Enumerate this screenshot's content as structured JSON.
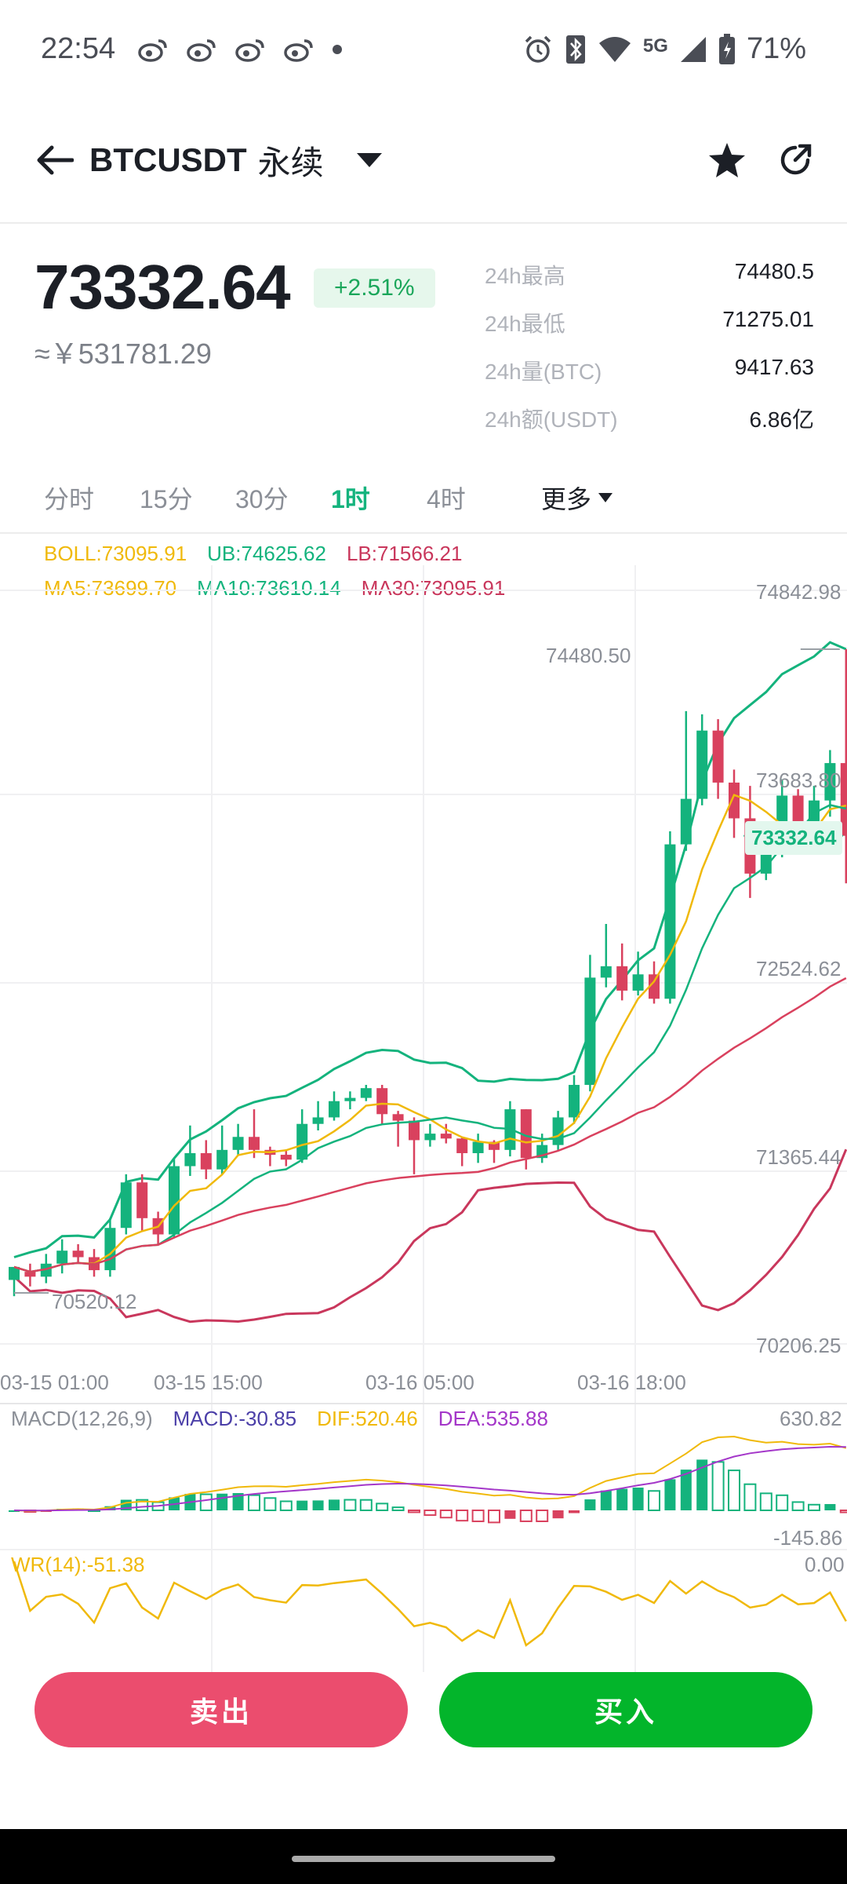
{
  "status_bar": {
    "time": "22:54",
    "network": "5G",
    "battery": "71%",
    "icons": [
      "weibo-icon",
      "weibo-icon",
      "weibo-icon",
      "weibo-icon",
      "dot-icon",
      "alarm-icon",
      "bluetooth-icon",
      "wifi-icon",
      "signal-icon",
      "battery-icon"
    ]
  },
  "header": {
    "symbol": "BTCUSDT",
    "contract_type": "永续"
  },
  "ticker": {
    "last_price": "73332.64",
    "change_pct": "+2.51%",
    "cny_price": "≈￥531781.29",
    "stats": [
      {
        "label": "24h最高",
        "value": "74480.5"
      },
      {
        "label": "24h最低",
        "value": "71275.01"
      },
      {
        "label": "24h量(BTC)",
        "value": "9417.63"
      },
      {
        "label": "24h额(USDT)",
        "value": "6.86亿"
      }
    ]
  },
  "period_tabs": {
    "items": [
      "分时",
      "15分",
      "30分",
      "1时",
      "4时"
    ],
    "active": "1时",
    "more_label": "更多"
  },
  "indicators": {
    "boll": "BOLL:73095.91",
    "ub": "UB:74625.62",
    "lb": "LB:71566.21",
    "ma5": "MA5:73699.70",
    "ma10": "MA10:73610.14",
    "ma30": "MA30:73095.91",
    "macd_title": "MACD(12,26,9)",
    "macd": "MACD:-30.85",
    "dif": "DIF:520.46",
    "dea": "DEA:535.88",
    "wr": "WR(14):-51.38"
  },
  "colors": {
    "up": "#14b37d",
    "down": "#d9415e",
    "ma5": "#f0b90b",
    "ub": "#14b37d",
    "lb": "#c9375c",
    "macd_label": "#4b3fa8",
    "dea": "#a437c9",
    "buy": "#03b52b",
    "sell": "#eb4d6e"
  },
  "chart_data": {
    "type": "candlestick",
    "interval": "1h",
    "y_axis_ticks": [
      "74842.98",
      "73683.80",
      "72524.62",
      "71365.44",
      "70206.25"
    ],
    "ylim": [
      70206.25,
      74842.98
    ],
    "x_axis_ticks": [
      "03-15 01:00",
      "03-15 15:00",
      "03-16 05:00",
      "03-16 18:00"
    ],
    "high_annotation": "74480.50",
    "low_annotation": "70520.12",
    "current_price_tag": "73332.64",
    "macd_axis": [
      "630.82",
      "-145.86"
    ],
    "wr_axis": [
      "0.00"
    ],
    "candles": [
      [
        70600,
        70680,
        70500,
        70650
      ],
      [
        70650,
        70620,
        70560,
        70700
      ],
      [
        70620,
        70700,
        70580,
        70760
      ],
      [
        70700,
        70780,
        70640,
        70850
      ],
      [
        70780,
        70740,
        70700,
        70820
      ],
      [
        70740,
        70660,
        70620,
        70790
      ],
      [
        70660,
        70920,
        70620,
        70980
      ],
      [
        70920,
        71200,
        70880,
        71250
      ],
      [
        71200,
        70980,
        70900,
        71250
      ],
      [
        70980,
        70880,
        70820,
        71020
      ],
      [
        70880,
        71300,
        70860,
        71350
      ],
      [
        71300,
        71380,
        71240,
        71550
      ],
      [
        71380,
        71280,
        71220,
        71460
      ],
      [
        71280,
        71400,
        71250,
        71550
      ],
      [
        71400,
        71480,
        71370,
        71560
      ],
      [
        71480,
        71400,
        71350,
        71650
      ],
      [
        71400,
        71370,
        71300,
        71420
      ],
      [
        71370,
        71340,
        71300,
        71400
      ],
      [
        71340,
        71560,
        71320,
        71650
      ],
      [
        71560,
        71600,
        71520,
        71700
      ],
      [
        71600,
        71700,
        71580,
        71760
      ],
      [
        71700,
        71720,
        71650,
        71760
      ],
      [
        71720,
        71780,
        71700,
        71800
      ],
      [
        71780,
        71620,
        71560,
        71800
      ],
      [
        71620,
        71580,
        71420,
        71640
      ],
      [
        71580,
        71460,
        71250,
        71600
      ],
      [
        71460,
        71500,
        71420,
        71560
      ],
      [
        71500,
        71470,
        71440,
        71560
      ],
      [
        71470,
        71380,
        71300,
        71480
      ],
      [
        71380,
        71450,
        71320,
        71500
      ],
      [
        71450,
        71400,
        71320,
        71460
      ],
      [
        71400,
        71650,
        71360,
        71700
      ],
      [
        71650,
        71350,
        71280,
        71650
      ],
      [
        71350,
        71430,
        71320,
        71500
      ],
      [
        71430,
        71600,
        71400,
        71640
      ],
      [
        71600,
        71800,
        71560,
        71860
      ],
      [
        71800,
        72460,
        71760,
        72600
      ],
      [
        72460,
        72530,
        72400,
        72790
      ],
      [
        72530,
        72380,
        72320,
        72670
      ],
      [
        72380,
        72480,
        72350,
        72620
      ],
      [
        72480,
        72330,
        72300,
        72560
      ],
      [
        72330,
        73280,
        72300,
        73360
      ],
      [
        73280,
        73560,
        73240,
        74100
      ],
      [
        73560,
        73980,
        73520,
        74080
      ],
      [
        73980,
        73660,
        73560,
        74050
      ],
      [
        73660,
        73440,
        73320,
        73740
      ],
      [
        73440,
        73100,
        72950,
        73640
      ],
      [
        73100,
        73220,
        73060,
        73330
      ],
      [
        73220,
        73580,
        73200,
        73680
      ],
      [
        73580,
        73350,
        73300,
        73620
      ],
      [
        73350,
        73550,
        73300,
        73640
      ],
      [
        73550,
        73780,
        73450,
        73860
      ],
      [
        73780,
        73332.64,
        73040,
        74480.5
      ]
    ]
  },
  "actions": {
    "sell_label": "卖出",
    "buy_label": "买入"
  }
}
